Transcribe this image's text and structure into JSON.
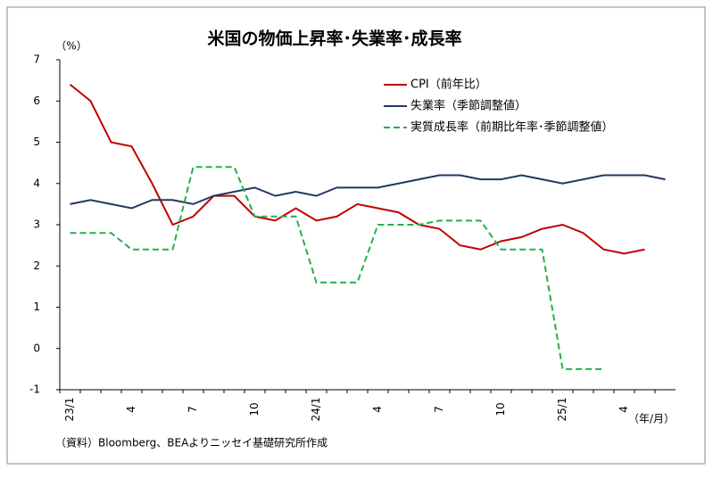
{
  "chart_data": {
    "type": "line",
    "title": "米国の物価上昇率･失業率･成長率",
    "y_label": "（%）",
    "x_label": "（年/月）",
    "source": "（資料）Bloomberg、BEAよりニッセイ基礎研究所作成",
    "categories": [
      "23/1",
      null,
      null,
      "4",
      null,
      null,
      "7",
      null,
      null,
      "10",
      null,
      null,
      "24/1",
      null,
      null,
      "4",
      null,
      null,
      "7",
      null,
      null,
      "10",
      null,
      null,
      "25/1",
      null,
      null,
      "4",
      null,
      null
    ],
    "series": [
      {
        "name": "CPI（前年比）",
        "color": "#c00000",
        "dashed": false,
        "values": [
          6.4,
          6.0,
          5.0,
          4.9,
          4.0,
          3.0,
          3.2,
          3.7,
          3.7,
          3.2,
          3.1,
          3.4,
          3.1,
          3.2,
          3.5,
          3.4,
          3.3,
          3.0,
          2.9,
          2.5,
          2.4,
          2.6,
          2.7,
          2.9,
          3.0,
          2.8,
          2.4,
          2.3,
          2.4,
          null
        ]
      },
      {
        "name": "失業率（季節調整値）",
        "color": "#1f3864",
        "dashed": false,
        "values": [
          3.5,
          3.6,
          3.5,
          3.4,
          3.6,
          3.6,
          3.5,
          3.7,
          3.8,
          3.9,
          3.7,
          3.8,
          3.7,
          3.9,
          3.9,
          3.9,
          4.0,
          4.1,
          4.2,
          4.2,
          4.1,
          4.1,
          4.2,
          4.1,
          4.0,
          4.1,
          4.2,
          4.2,
          4.2,
          4.1
        ]
      },
      {
        "name": "実質成長率（前期比年率･季節調整値）",
        "color": "#22b14c",
        "dashed": true,
        "values": [
          2.8,
          2.8,
          2.8,
          2.4,
          2.4,
          2.4,
          4.4,
          4.4,
          4.4,
          3.2,
          3.2,
          3.2,
          1.6,
          1.6,
          1.6,
          3.0,
          3.0,
          3.0,
          3.1,
          3.1,
          3.1,
          2.4,
          2.4,
          2.4,
          -0.5,
          -0.5,
          -0.5,
          null,
          null,
          null
        ]
      }
    ],
    "ylim": [
      -1,
      7
    ],
    "yticks": [
      -1,
      0,
      1,
      2,
      3,
      4,
      5,
      6,
      7
    ],
    "grid": false,
    "legend": "upper right"
  }
}
